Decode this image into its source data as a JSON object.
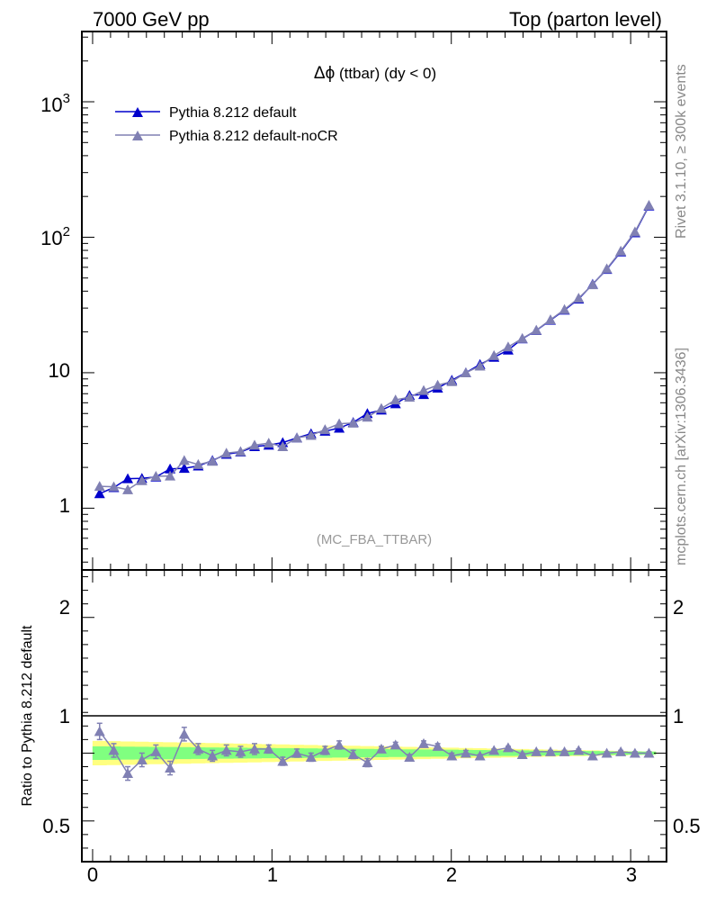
{
  "header": {
    "left": "7000 GeV pp",
    "right": "Top (parton level)"
  },
  "side_labels": {
    "rivet": "Rivet 3.1.10, ≥ 300k events",
    "mcplots": "mcplots.cern.ch [arXiv:1306.3436]"
  },
  "colors": {
    "default": "#0000cc",
    "nocr": "#8080b3",
    "band_inner": "#80ff80",
    "band_outer": "#ffff80"
  },
  "chart_data": [
    {
      "type": "line",
      "title": "Δϕ (ttbar) (dy < 0)",
      "title_symbol": "Δϕ",
      "title_rest": " (ttbar) (dy < 0)",
      "watermark": "(MC_FBA_TTBAR)",
      "yscale": "log",
      "xlim": [
        -0.06,
        3.2
      ],
      "ylim": [
        0.35,
        3300
      ],
      "y_ticklabels": [
        "1",
        "10",
        "10",
        "10"
      ],
      "y_ticklabel_exponents": [
        "",
        "",
        "2",
        "3"
      ],
      "legend_position": "top-left",
      "x": [
        0.039,
        0.118,
        0.196,
        0.275,
        0.353,
        0.432,
        0.511,
        0.589,
        0.668,
        0.746,
        0.825,
        0.903,
        0.982,
        1.06,
        1.139,
        1.218,
        1.296,
        1.375,
        1.453,
        1.532,
        1.61,
        1.689,
        1.767,
        1.846,
        1.924,
        2.003,
        2.081,
        2.16,
        2.238,
        2.317,
        2.396,
        2.474,
        2.553,
        2.631,
        2.71,
        2.788,
        2.867,
        2.945,
        3.024,
        3.102
      ],
      "series": [
        {
          "name": "Pythia 8.212 default",
          "values": [
            1.28,
            1.42,
            1.65,
            1.66,
            1.7,
            1.95,
            1.97,
            2.05,
            2.25,
            2.5,
            2.6,
            2.85,
            2.92,
            3.05,
            3.3,
            3.55,
            3.7,
            3.9,
            4.3,
            5.0,
            5.3,
            5.9,
            6.8,
            6.9,
            7.7,
            8.8,
            10.0,
            11.5,
            13.0,
            14.7,
            17.8,
            20.5,
            24.4,
            29.0,
            35.0,
            45.0,
            58.0,
            78.0,
            108.0,
            170.0
          ]
        },
        {
          "name": "Pythia 8.212 default-noCR",
          "values": [
            1.45,
            1.44,
            1.37,
            1.6,
            1.72,
            1.73,
            2.25,
            2.1,
            2.22,
            2.55,
            2.62,
            2.92,
            3.02,
            2.85,
            3.3,
            3.45,
            3.8,
            4.2,
            4.25,
            4.7,
            5.45,
            6.3,
            6.6,
            7.4,
            8.1,
            8.6,
            10.0,
            11.2,
            13.4,
            15.5,
            17.9,
            20.6,
            24.6,
            29.3,
            35.5,
            44.7,
            58.5,
            79.0,
            109.5,
            172.0
          ]
        }
      ]
    },
    {
      "type": "line",
      "ylabel": "Ratio to Pythia 8.212 default",
      "xlim": [
        -0.06,
        3.2
      ],
      "ylim": [
        0.2,
        2.35
      ],
      "x_ticks": [
        0,
        1,
        2,
        3
      ],
      "x_ticklabels": [
        "0",
        "1",
        "2",
        "3"
      ],
      "y_ticks": [
        0.5,
        1,
        2
      ],
      "y_ticklabels": [
        "0.5",
        "1",
        "2"
      ],
      "x": [
        0.039,
        0.118,
        0.196,
        0.275,
        0.353,
        0.432,
        0.511,
        0.589,
        0.668,
        0.746,
        0.825,
        0.903,
        0.982,
        1.06,
        1.139,
        1.218,
        1.296,
        1.375,
        1.453,
        1.532,
        1.61,
        1.689,
        1.767,
        1.846,
        1.924,
        2.003,
        2.081,
        2.16,
        2.238,
        2.317,
        2.396,
        2.474,
        2.553,
        2.631,
        2.71,
        2.788,
        2.867,
        2.945,
        3.024,
        3.102
      ],
      "band_inner_halfwidth": [
        0.05,
        0.049,
        0.048,
        0.047,
        0.046,
        0.045,
        0.044,
        0.043,
        0.042,
        0.041,
        0.04,
        0.039,
        0.038,
        0.037,
        0.036,
        0.035,
        0.034,
        0.033,
        0.032,
        0.031,
        0.03,
        0.029,
        0.028,
        0.027,
        0.026,
        0.025,
        0.024,
        0.023,
        0.022,
        0.021,
        0.02,
        0.019,
        0.018,
        0.017,
        0.016,
        0.015,
        0.014,
        0.013,
        0.012,
        0.011
      ],
      "band_outer_halfwidth": [
        0.09,
        0.088,
        0.086,
        0.084,
        0.082,
        0.08,
        0.078,
        0.076,
        0.074,
        0.072,
        0.07,
        0.068,
        0.066,
        0.064,
        0.062,
        0.06,
        0.058,
        0.056,
        0.054,
        0.052,
        0.05,
        0.048,
        0.046,
        0.044,
        0.042,
        0.04,
        0.038,
        0.036,
        0.034,
        0.032,
        0.03,
        0.028,
        0.026,
        0.024,
        0.022,
        0.02,
        0.018,
        0.016,
        0.014,
        0.012
      ],
      "series": [
        {
          "name": "Pythia 8.212 default-noCR",
          "values": [
            1.16,
            1.02,
            0.85,
            0.95,
            1.01,
            0.89,
            1.14,
            1.03,
            0.98,
            1.02,
            1.01,
            1.03,
            1.03,
            0.94,
            1.0,
            0.97,
            1.02,
            1.06,
            0.99,
            0.93,
            1.03,
            1.06,
            0.97,
            1.07,
            1.05,
            0.98,
            1.0,
            0.98,
            1.02,
            1.04,
            0.99,
            1.01,
            1.01,
            1.01,
            1.02,
            0.98,
            1.0,
            1.01,
            1.0,
            1.0
          ],
          "errors": [
            0.06,
            0.05,
            0.05,
            0.05,
            0.05,
            0.05,
            0.05,
            0.04,
            0.04,
            0.04,
            0.04,
            0.04,
            0.03,
            0.03,
            0.03,
            0.03,
            0.03,
            0.03,
            0.03,
            0.03,
            0.02,
            0.02,
            0.02,
            0.02,
            0.02,
            0.02,
            0.02,
            0.01,
            0.01,
            0.01,
            0.01,
            0.01,
            0.01,
            0.01,
            0.01,
            0.01,
            0.01,
            0.01,
            0.01,
            0.01
          ]
        }
      ]
    }
  ]
}
